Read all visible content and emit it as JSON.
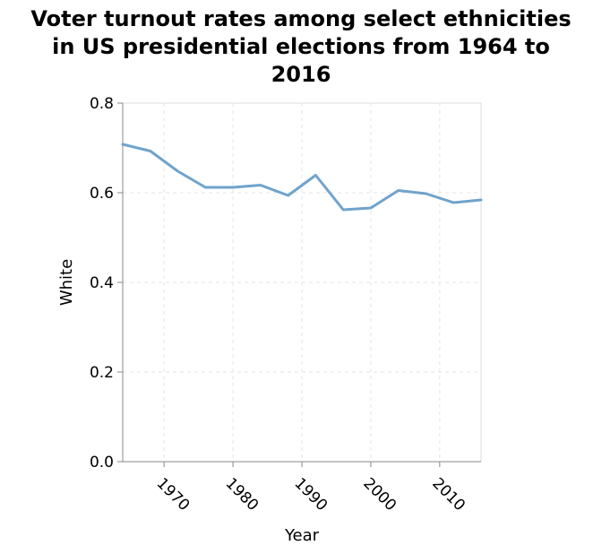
{
  "chart_data": {
    "type": "line",
    "title_lines": [
      "Voter turnout rates among select ethnicities",
      "in US presidential elections from 1964 to",
      "2016"
    ],
    "xlabel": "Year",
    "ylabel": "White",
    "xlim": [
      1964,
      2016
    ],
    "ylim": [
      0,
      0.8
    ],
    "x_ticks": [
      1970,
      1980,
      1990,
      2000,
      2010
    ],
    "x_tick_labels": [
      "1970",
      "1980",
      "1990",
      "2000",
      "2010"
    ],
    "y_ticks": [
      0,
      0.2,
      0.4,
      0.6,
      0.8
    ],
    "y_tick_labels": [
      "0.0",
      "0.2",
      "0.4",
      "0.6",
      "0.8"
    ],
    "grid": true,
    "series": [
      {
        "color": "#6fa3cc",
        "x": [
          1964,
          1968,
          1972,
          1976,
          1980,
          1984,
          1988,
          1992,
          1996,
          2000,
          2004,
          2008,
          2012,
          2016
        ],
        "y": [
          0.708,
          0.693,
          0.648,
          0.612,
          0.612,
          0.617,
          0.594,
          0.639,
          0.562,
          0.566,
          0.605,
          0.598,
          0.578,
          0.584
        ]
      }
    ]
  }
}
